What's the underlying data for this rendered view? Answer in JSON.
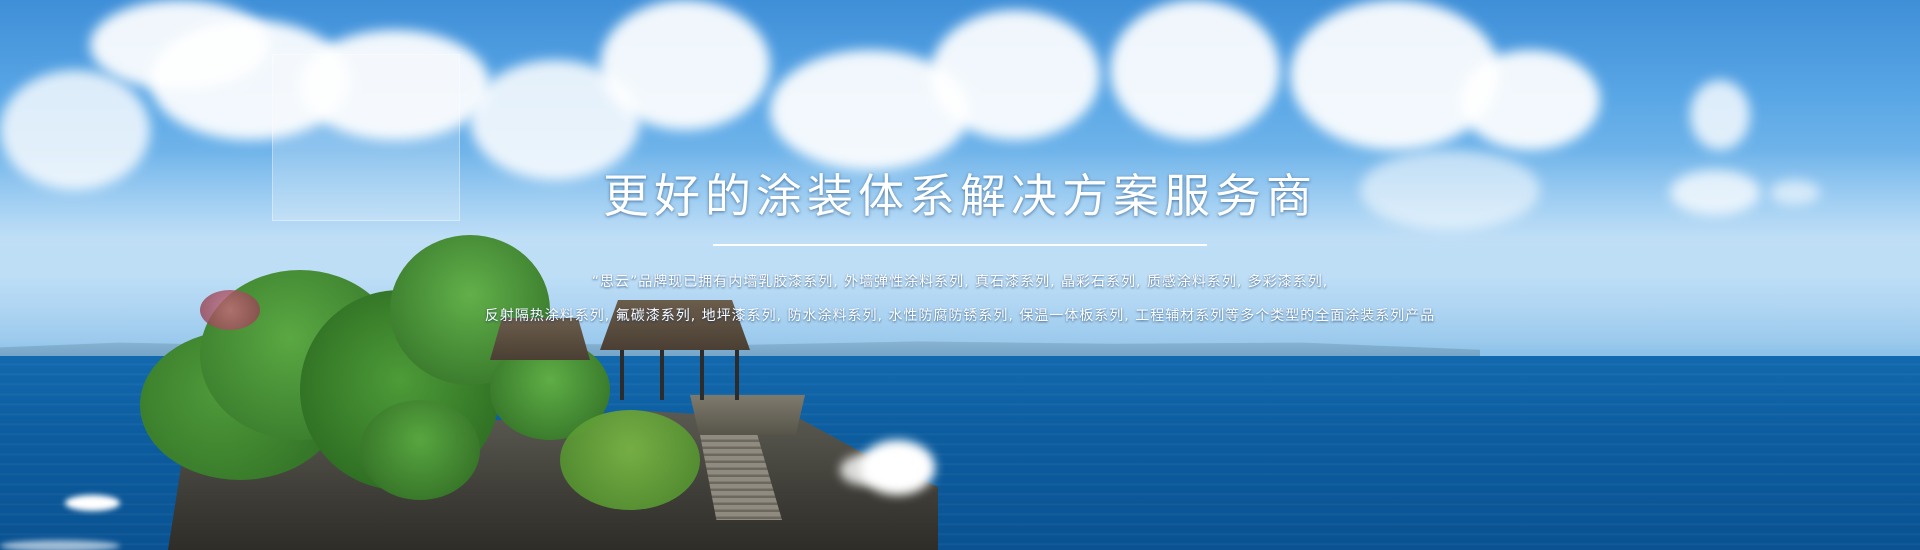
{
  "banner": {
    "headline": "更好的涂装体系解决方案服务商",
    "description_line1": "“思云”品牌现已拥有内墙乳胶漆系列, 外墙弹性涂料系列, 真石漆系列, 晶彩石系列, 质感涂料系列, 多彩漆系列,",
    "description_line2": "反射隔热涂料系列, 氟碳漆系列, 地坪漆系列, 防水涂料系列, 水性防腐防锈系列, 保温一体板系列, 工程辅材系列等多个类型的全面涂装系列产品",
    "background": "ocean-cliff-temple-photo"
  },
  "colors": {
    "sky_top": "#3f8fd8",
    "sea": "#0c5d9f",
    "text": "#ffffff"
  }
}
